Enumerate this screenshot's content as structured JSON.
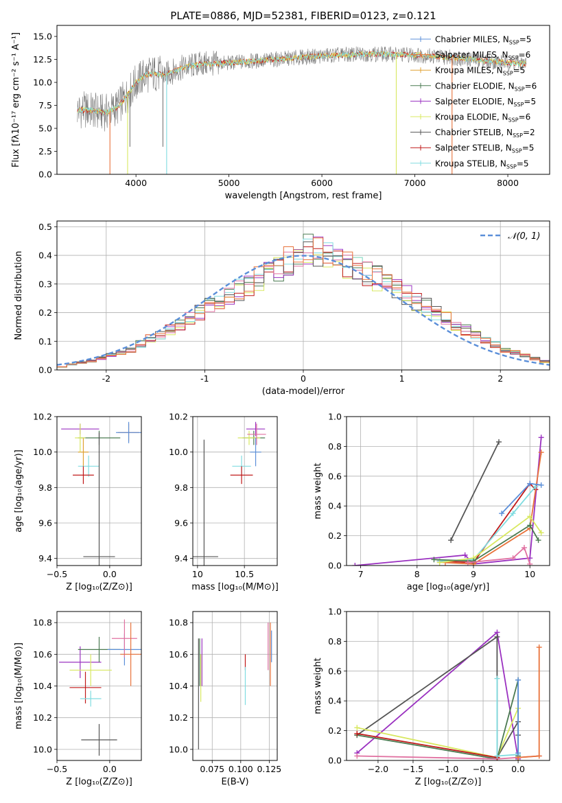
{
  "figure": {
    "title": "PLATE=0886, MJD=52381, FIBERID=0123, z=0.121",
    "colors": {
      "chabrier_miles": "#5b8fd9",
      "salpeter_miles": "#e8723a",
      "kroupa_miles": "#e0a030",
      "chabrier_elodie": "#4a7a50",
      "salpeter_elodie": "#9a30c0",
      "kroupa_elodie": "#d8e860",
      "chabrier_stelib": "#555555",
      "salpeter_stelib": "#c01818",
      "kroupa_stelib": "#80dce0",
      "pink": "#e070a0",
      "data": "#777777",
      "normal": "#5b8fd9"
    }
  },
  "chart_data": [
    {
      "id": "spectrum",
      "type": "line",
      "title": "PLATE=0886, MJD=52381, FIBERID=0123, z=0.121",
      "xlabel": "wavelength [Angstrom, rest frame]",
      "ylabel": "Flux [fλ10⁻¹⁷ erg cm⁻² s⁻¹ A⁻¹]",
      "xlim": [
        3150,
        8450
      ],
      "ylim": [
        0,
        16.2
      ],
      "xticks": [
        4000,
        5000,
        6000,
        7000,
        8000
      ],
      "yticks": [
        0.0,
        2.5,
        5.0,
        7.5,
        10.0,
        12.5,
        15.0
      ],
      "grid": false,
      "legend_position": "top-right",
      "series": [
        {
          "name": "Chabrier MILES, N_SSP=5",
          "color": "#5b8fd9"
        },
        {
          "name": "Salpeter MILES, N_SSP=6",
          "color": "#e8723a"
        },
        {
          "name": "Kroupa MILES, N_SSP=5",
          "color": "#e0a030"
        },
        {
          "name": "Chabrier ELODIE, N_SSP=6",
          "color": "#4a7a50"
        },
        {
          "name": "Salpeter ELODIE, N_SSP=5",
          "color": "#9a30c0"
        },
        {
          "name": "Kroupa ELODIE, N_SSP=6",
          "color": "#d8e860"
        },
        {
          "name": "Chabrier STELIB, N_SSP=2",
          "color": "#555555"
        },
        {
          "name": "Salpeter STELIB, N_SSP=5",
          "color": "#c01818"
        },
        {
          "name": "Kroupa STELIB, N_SSP=5",
          "color": "#80dce0"
        }
      ],
      "continuum": {
        "x": [
          3370,
          3500,
          3650,
          3700,
          3800,
          3900,
          4000,
          4100,
          4200,
          4300,
          4400,
          4500,
          4700,
          5000,
          5500,
          6000,
          6500,
          7000,
          7400,
          7800,
          8200
        ],
        "y": [
          7.0,
          7.0,
          6.7,
          6.8,
          7.3,
          8.5,
          10.0,
          10.8,
          11.0,
          10.8,
          11.2,
          11.6,
          12.0,
          12.1,
          12.5,
          12.9,
          13.1,
          13.0,
          12.7,
          12.3,
          12.0
        ]
      },
      "dips": [
        {
          "x": 3720,
          "y": 0.0,
          "color": "#e8723a"
        },
        {
          "x": 3910,
          "y": 0.0,
          "color": "#d8e860"
        },
        {
          "x": 3935,
          "y": 3.0,
          "color": "#777777"
        },
        {
          "x": 4290,
          "y": 3.0,
          "color": "#777777"
        },
        {
          "x": 4330,
          "y": 0.0,
          "color": "#80dce0"
        },
        {
          "x": 6800,
          "y": 0.0,
          "color": "#d8e860"
        },
        {
          "x": 7400,
          "y": 0.0,
          "color": "#e8723a"
        }
      ]
    },
    {
      "id": "residuals",
      "type": "line",
      "xlabel": "(data-model)/error",
      "ylabel": "Normed distribution",
      "xlim": [
        -2.5,
        2.5
      ],
      "ylim": [
        0,
        0.52
      ],
      "xticks": [
        -2,
        -1,
        0,
        1,
        2
      ],
      "yticks": [
        0.0,
        0.1,
        0.2,
        0.3,
        0.4,
        0.5
      ],
      "grid": true,
      "legend_position": "top-right",
      "legend": "𝒩(0, 1)",
      "bin_width": 0.1,
      "bin_start": -2.5,
      "base": [
        0.01,
        0.02,
        0.025,
        0.03,
        0.04,
        0.05,
        0.06,
        0.07,
        0.09,
        0.11,
        0.12,
        0.14,
        0.16,
        0.18,
        0.2,
        0.22,
        0.24,
        0.26,
        0.28,
        0.3,
        0.32,
        0.34,
        0.36,
        0.38,
        0.4,
        0.42,
        0.42,
        0.4,
        0.39,
        0.37,
        0.36,
        0.34,
        0.32,
        0.3,
        0.28,
        0.26,
        0.24,
        0.22,
        0.2,
        0.18,
        0.16,
        0.14,
        0.12,
        0.1,
        0.09,
        0.07,
        0.06,
        0.05,
        0.04,
        0.03
      ],
      "histogram_colors": [
        "#4a7a50",
        "#9a30c0",
        "#d8e860",
        "#c01818",
        "#80dce0",
        "#e070a0",
        "#555555",
        "#e8723a"
      ]
    },
    {
      "id": "age_vs_Z",
      "type": "scatter",
      "xlabel": "Z [log₁₀(Z/Z⊙)]",
      "ylabel": "age  [log₁₀(age/yr)]",
      "xlim": [
        -0.5,
        0.3
      ],
      "ylim": [
        9.36,
        10.2
      ],
      "xticks": [
        -0.5,
        0.0
      ],
      "xticklabels": [
        "−0.5",
        "0.0"
      ],
      "yticks": [
        9.4,
        9.6,
        9.8,
        10.0,
        10.2
      ],
      "grid": true,
      "points": [
        {
          "x": -0.28,
          "y": 10.13,
          "xerr": 0.18,
          "yerr": 0.03,
          "color": "#9a30c0"
        },
        {
          "x": -0.1,
          "y": 10.08,
          "xerr": 0.2,
          "yerr": 0.04,
          "color": "#4a7a50"
        },
        {
          "x": 0.18,
          "y": 10.11,
          "xerr": 0.1,
          "yerr": 0.05,
          "color": "#e8723a"
        },
        {
          "x": 0.18,
          "y": 10.11,
          "xerr": 0.12,
          "yerr": 0.06,
          "color": "#5b8fd9"
        },
        {
          "x": -0.25,
          "y": 10.0,
          "xerr": 0.05,
          "yerr": 0.08,
          "color": "#e0a030"
        },
        {
          "x": -0.2,
          "y": 9.92,
          "xerr": 0.1,
          "yerr": 0.06,
          "color": "#80dce0"
        },
        {
          "x": -0.25,
          "y": 9.87,
          "xerr": 0.1,
          "yerr": 0.05,
          "color": "#c01818"
        },
        {
          "x": -0.1,
          "y": 9.41,
          "xerr": 0.15,
          "yerr": 0.7,
          "color": "#555555"
        },
        {
          "x": -0.28,
          "y": 10.08,
          "xerr": 0.05,
          "yerr": 0.08,
          "color": "#d8e860"
        }
      ]
    },
    {
      "id": "age_vs_mass",
      "type": "scatter",
      "xlabel": "mass [log₁₀(M/M⊙)]",
      "ylabel": "",
      "xlim": [
        9.95,
        10.85
      ],
      "ylim": [
        9.36,
        10.2
      ],
      "xticks": [
        10.0,
        10.5
      ],
      "yticks": [
        9.4,
        9.6,
        9.8,
        10.0,
        10.2
      ],
      "grid": true,
      "points": [
        {
          "x": 10.62,
          "y": 10.13,
          "xerr": 0.1,
          "yerr": 0.04,
          "color": "#9a30c0"
        },
        {
          "x": 10.6,
          "y": 10.08,
          "xerr": 0.12,
          "yerr": 0.04,
          "color": "#4a7a50"
        },
        {
          "x": 10.55,
          "y": 10.08,
          "xerr": 0.12,
          "yerr": 0.04,
          "color": "#d8e860"
        },
        {
          "x": 10.63,
          "y": 10.1,
          "xerr": 0.1,
          "yerr": 0.06,
          "color": "#e070a0"
        },
        {
          "x": 10.62,
          "y": 10.0,
          "xerr": 0.06,
          "yerr": 0.08,
          "color": "#5b8fd9"
        },
        {
          "x": 10.47,
          "y": 9.92,
          "xerr": 0.1,
          "yerr": 0.06,
          "color": "#80dce0"
        },
        {
          "x": 10.47,
          "y": 9.87,
          "xerr": 0.12,
          "yerr": 0.05,
          "color": "#c01818"
        },
        {
          "x": 10.07,
          "y": 9.41,
          "xerr": 0.15,
          "yerr": 0.66,
          "color": "#555555"
        }
      ]
    },
    {
      "id": "weight_vs_age",
      "type": "line",
      "xlabel": "age  [log₁₀(age/yr)]",
      "ylabel": "mass weight",
      "xlim": [
        6.75,
        10.35
      ],
      "ylim": [
        0,
        1.0
      ],
      "xticks": [
        7,
        8,
        9,
        10
      ],
      "yticks": [
        0.0,
        0.2,
        0.4,
        0.6,
        0.8,
        1.0
      ],
      "grid": true,
      "series": [
        {
          "color": "#555555",
          "x": [
            8.6,
            9.45
          ],
          "y": [
            0.17,
            0.83
          ]
        },
        {
          "color": "#9a30c0",
          "x": [
            6.9,
            8.85,
            9.0,
            10.0,
            10.2
          ],
          "y": [
            0.0,
            0.07,
            0.01,
            0.05,
            0.86
          ]
        },
        {
          "color": "#c01818",
          "x": [
            8.4,
            9.0,
            10.0,
            10.1
          ],
          "y": [
            0.03,
            0.02,
            0.55,
            0.51
          ]
        },
        {
          "color": "#e8723a",
          "x": [
            8.5,
            9.0,
            10.0,
            10.2
          ],
          "y": [
            0.02,
            0.01,
            0.25,
            0.76
          ]
        },
        {
          "color": "#80dce0",
          "x": [
            8.4,
            9.0,
            9.7,
            10.1
          ],
          "y": [
            0.03,
            0.04,
            0.35,
            0.53
          ]
        },
        {
          "color": "#d8e860",
          "x": [
            8.4,
            9.0,
            10.0,
            10.2
          ],
          "y": [
            0.02,
            0.05,
            0.33,
            0.22
          ]
        },
        {
          "color": "#4a7a50",
          "x": [
            8.3,
            9.0,
            10.0,
            10.15
          ],
          "y": [
            0.04,
            0.03,
            0.27,
            0.17
          ]
        },
        {
          "color": "#e070a0",
          "x": [
            8.9,
            9.7,
            9.9,
            10.0
          ],
          "y": [
            0.02,
            0.05,
            0.12,
            0.01
          ]
        },
        {
          "color": "#5b8fd9",
          "x": [
            9.5,
            10.0,
            10.2
          ],
          "y": [
            0.35,
            0.55,
            0.54
          ]
        }
      ]
    },
    {
      "id": "mass_vs_Z",
      "type": "scatter",
      "xlabel": "Z [log₁₀(Z/Z⊙)]",
      "ylabel": "mass [log₁₀(M/M⊙)]",
      "xlim": [
        -0.5,
        0.3
      ],
      "ylim": [
        9.93,
        10.87
      ],
      "xticks": [
        -0.5,
        0.0
      ],
      "xticklabels": [
        "−0.5",
        "0.0"
      ],
      "yticks": [
        10.0,
        10.2,
        10.4,
        10.6,
        10.8
      ],
      "grid": true,
      "points": [
        {
          "x": -0.28,
          "y": 10.55,
          "xerr": 0.2,
          "yerr": 0.1,
          "color": "#9a30c0"
        },
        {
          "x": -0.1,
          "y": 10.63,
          "xerr": 0.2,
          "yerr": 0.08,
          "color": "#4a7a50"
        },
        {
          "x": 0.14,
          "y": 10.63,
          "xerr": 0.16,
          "yerr": 0.1,
          "color": "#5b8fd9"
        },
        {
          "x": 0.14,
          "y": 10.7,
          "xerr": 0.12,
          "yerr": 0.12,
          "color": "#e070a0"
        },
        {
          "x": 0.2,
          "y": 10.6,
          "xerr": 0.1,
          "yerr": 0.2,
          "color": "#e8723a"
        },
        {
          "x": -0.18,
          "y": 10.5,
          "xerr": 0.2,
          "yerr": 0.1,
          "color": "#d8e860"
        },
        {
          "x": -0.23,
          "y": 10.39,
          "xerr": 0.15,
          "yerr": 0.1,
          "color": "#c01818"
        },
        {
          "x": -0.18,
          "y": 10.32,
          "xerr": 0.1,
          "yerr": 0.05,
          "color": "#80dce0"
        },
        {
          "x": -0.1,
          "y": 10.06,
          "xerr": 0.17,
          "yerr": 0.1,
          "color": "#555555"
        }
      ]
    },
    {
      "id": "mass_vs_ebv",
      "type": "scatter",
      "xlabel": "E(B-V)",
      "ylabel": "",
      "xlim": [
        0.058,
        0.132
      ],
      "ylim": [
        9.93,
        10.87
      ],
      "xticks": [
        0.075,
        0.1,
        0.125
      ],
      "xticklabels": [
        "0.075",
        "0.100",
        "0.125"
      ],
      "yticks": [
        10.0,
        10.2,
        10.4,
        10.6,
        10.8
      ],
      "grid": true,
      "points": [
        {
          "x": 0.063,
          "y": 10.35,
          "yerr": 0.35,
          "color": "#555555"
        },
        {
          "x": 0.064,
          "y": 10.55,
          "yerr": 0.15,
          "color": "#4a7a50"
        },
        {
          "x": 0.066,
          "y": 10.55,
          "yerr": 0.15,
          "color": "#9a30c0"
        },
        {
          "x": 0.065,
          "y": 10.45,
          "yerr": 0.15,
          "color": "#d8e860"
        },
        {
          "x": 0.104,
          "y": 10.55,
          "yerr": 0.05,
          "color": "#c01818"
        },
        {
          "x": 0.104,
          "y": 10.4,
          "yerr": 0.12,
          "color": "#80dce0"
        },
        {
          "x": 0.124,
          "y": 10.65,
          "yerr": 0.15,
          "color": "#e070a0"
        },
        {
          "x": 0.126,
          "y": 10.6,
          "yerr": 0.2,
          "color": "#e8723a"
        },
        {
          "x": 0.127,
          "y": 10.65,
          "yerr": 0.1,
          "color": "#5b8fd9"
        }
      ]
    },
    {
      "id": "weight_vs_Z",
      "type": "line",
      "xlabel": "Z [log₁₀(Z/Z⊙)]",
      "ylabel": "mass weight",
      "xlim": [
        -2.45,
        0.45
      ],
      "ylim": [
        0,
        1.0
      ],
      "xticks": [
        -2.0,
        -1.5,
        -1.0,
        -0.5,
        0.0
      ],
      "xticklabels": [
        "−2.0",
        "−1.5",
        "−1.0",
        "−0.5",
        "0.0"
      ],
      "yticks": [
        0.0,
        0.2,
        0.4,
        0.6,
        0.8,
        1.0
      ],
      "grid": true,
      "series": [
        {
          "color": "#9a30c0",
          "x": [
            -2.3,
            -0.3,
            0.0
          ],
          "y": [
            0.05,
            0.86,
            0.01
          ]
        },
        {
          "color": "#555555",
          "x": [
            -2.3,
            -0.3,
            -0.3,
            0.0,
            0.0
          ],
          "y": [
            0.17,
            0.83,
            0.02,
            0.26,
            0.17
          ]
        },
        {
          "color": "#d8e860",
          "x": [
            -2.3,
            -0.3,
            0.0,
            0.0
          ],
          "y": [
            0.22,
            0.02,
            0.35,
            0.0
          ]
        },
        {
          "color": "#4a7a50",
          "x": [
            -2.3,
            -0.3,
            0.0,
            0.0
          ],
          "y": [
            0.17,
            0.01,
            0.54,
            0.03
          ]
        },
        {
          "color": "#e070a0",
          "x": [
            -2.3,
            -0.3,
            0.0,
            0.3
          ],
          "y": [
            0.03,
            0.01,
            0.02,
            0.03
          ]
        },
        {
          "color": "#c01818",
          "x": [
            -2.3,
            -0.3
          ],
          "y": [
            0.18,
            0.02
          ]
        },
        {
          "color": "#80dce0",
          "x": [
            -0.3,
            -0.3,
            0.0
          ],
          "y": [
            0.55,
            0.03,
            0.04
          ]
        },
        {
          "color": "#e8723a",
          "x": [
            0.3,
            0.3,
            0.0
          ],
          "y": [
            0.76,
            0.03,
            0.02
          ]
        },
        {
          "color": "#5b8fd9",
          "x": [
            0.0,
            0.0
          ],
          "y": [
            0.54,
            0.05
          ]
        }
      ]
    }
  ]
}
